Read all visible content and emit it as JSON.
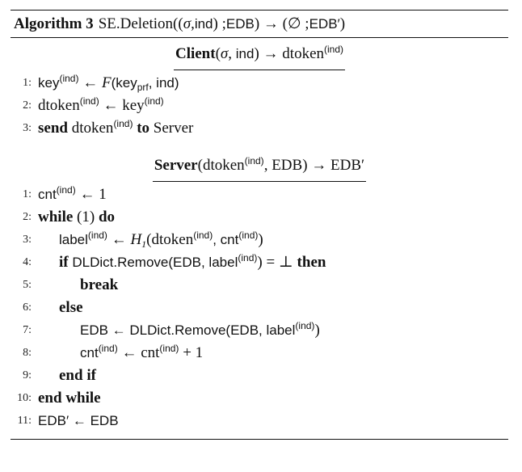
{
  "algorithm": {
    "label": "Algorithm 3",
    "name": "SE.Deletion",
    "signature_open": "((",
    "sigma": "σ",
    "sig_sep1": ", ",
    "ind": "ind",
    "sig_sep2": ") ; ",
    "edb": "EDB",
    "arrow_part": ") → (∅ ; ",
    "edb_prime": "EDB′",
    "close": ")"
  },
  "client": {
    "title_bold": "Client",
    "title_args_open": "(",
    "title_sigma": "σ",
    "title_comma": ", ",
    "title_ind": "ind",
    "title_args_close": ") → ",
    "title_output": "dtoken",
    "title_output_sup": "(ind)",
    "lines": [
      {
        "no": "1:",
        "t1": "key",
        "s1": "(ind)",
        "t2": " ← ",
        "t3": "F",
        "t4": "(key",
        "sb": "prf",
        "t5": ", ind)"
      },
      {
        "no": "2:",
        "t1": "dtoken",
        "s1": "(ind)",
        "t2": " ← key",
        "s2": "(ind)"
      },
      {
        "no": "3:",
        "k1": "send",
        "t1": " dtoken",
        "s1": "(ind)",
        "k2": " to",
        "t2": " Server"
      }
    ]
  },
  "server": {
    "title_bold": "Server",
    "title_open": "(dtoken",
    "title_sup": "(ind)",
    "title_rest": ", EDB) → EDB′",
    "lines": [
      {
        "no": "1:",
        "t1": "cnt",
        "s1": "(ind)",
        "t2": " ← 1"
      },
      {
        "no": "2:",
        "k1": "while",
        "t1": " (1) ",
        "k2": "do"
      },
      {
        "no": "3:",
        "t1": "label",
        "s1": "(ind)",
        "t2": " ← ",
        "h": "H",
        "hsub": "1",
        "t3": "(dtoken",
        "s2": "(ind)",
        "t4": ", cnt",
        "s3": "(ind)",
        "t5": ")"
      },
      {
        "no": "4:",
        "k1": "if",
        "t1": " DLDict.Remove(EDB, label",
        "s1": "(ind)",
        "t2": ") = ⊥ ",
        "k2": "then"
      },
      {
        "no": "5:",
        "k1": "break"
      },
      {
        "no": "6:",
        "k1": "else"
      },
      {
        "no": "7:",
        "t1": "EDB ← DLDict.Remove(EDB, label",
        "s1": "(ind)",
        "t2": ")"
      },
      {
        "no": "8:",
        "t1": "cnt",
        "s1": "(ind)",
        "t2": " ← cnt",
        "s2": "(ind)",
        "t3": " + 1"
      },
      {
        "no": "9:",
        "k1": "end if"
      },
      {
        "no": "10:",
        "k1": "end while"
      },
      {
        "no": "11:",
        "t1": "EDB′ ← EDB"
      }
    ]
  }
}
